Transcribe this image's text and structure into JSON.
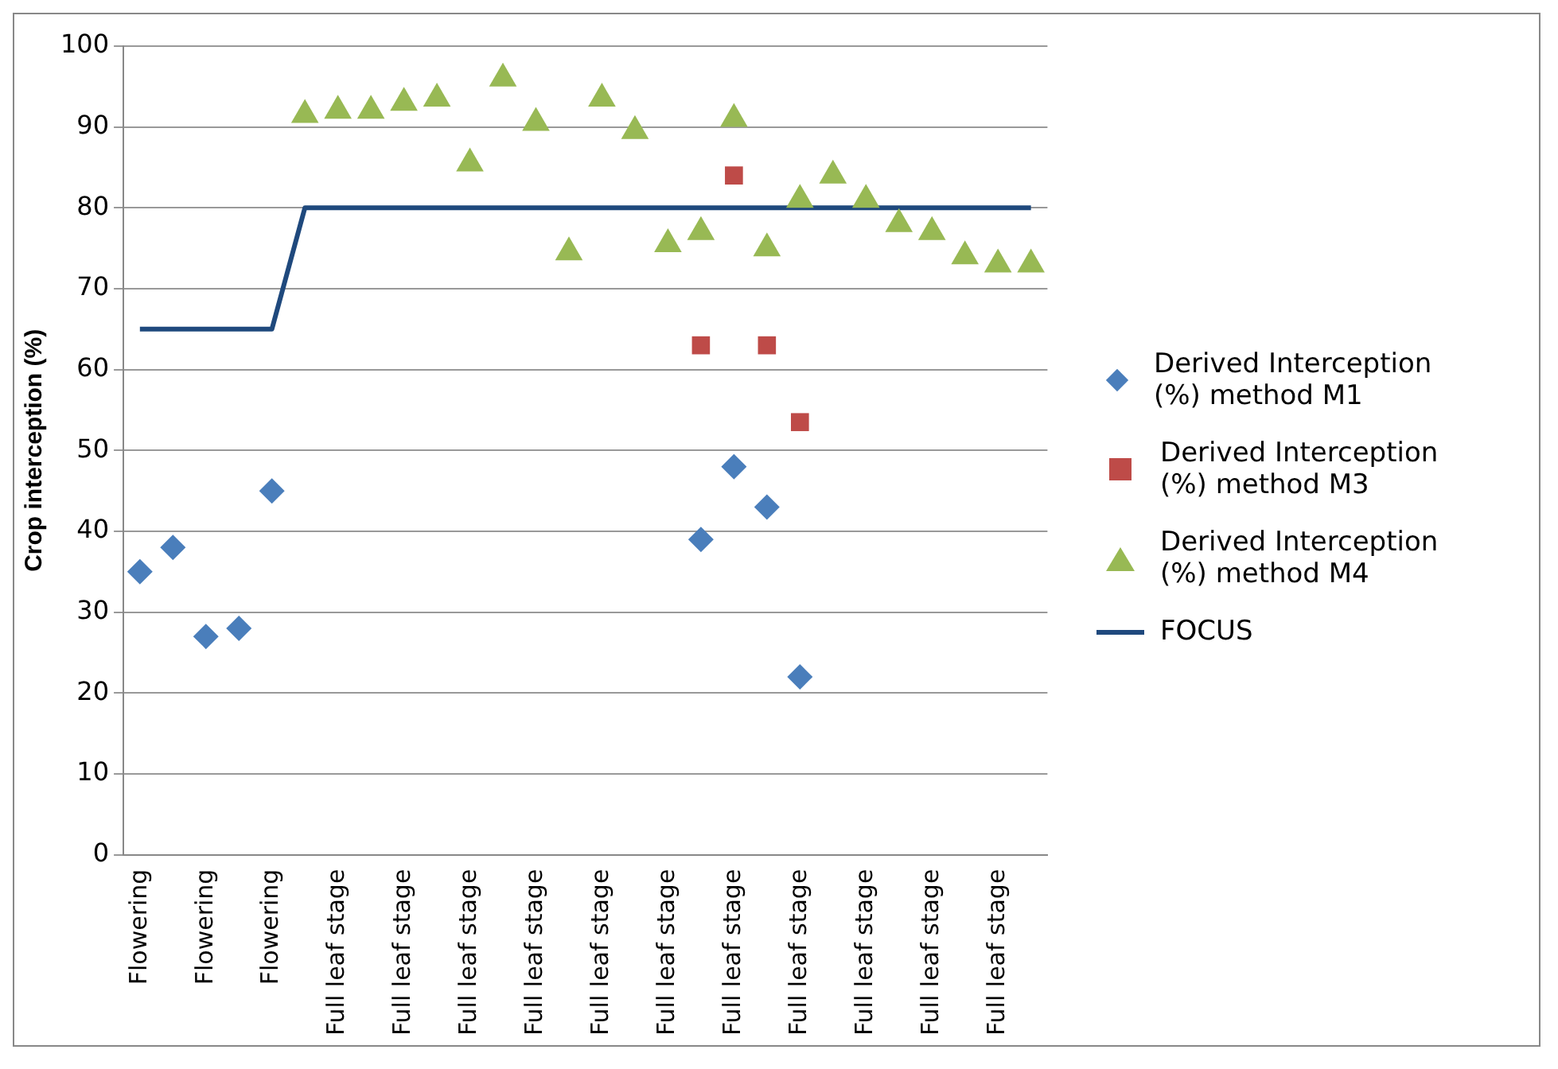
{
  "chart_data": {
    "type": "scatter",
    "ylabel": "Crop interception (%)",
    "categories": [
      "Flowering",
      null,
      "Flowering",
      null,
      "Flowering",
      null,
      "Full leaf stage",
      null,
      "Full leaf stage",
      null,
      "Full leaf stage",
      null,
      "Full leaf stage",
      null,
      "Full leaf stage",
      null,
      "Full leaf stage",
      null,
      "Full leaf stage",
      null,
      "Full leaf stage",
      null,
      "Full leaf stage",
      null,
      "Full leaf stage",
      null,
      "Full leaf stage",
      null
    ],
    "ylim": [
      0,
      100
    ],
    "yticks": [
      0,
      10,
      20,
      30,
      40,
      50,
      60,
      70,
      80,
      90,
      100
    ],
    "grid": "y",
    "legend": "right",
    "series": [
      {
        "name": "Derived Interception (%) method M1",
        "marker": "diamond",
        "color": "#4a7ebb",
        "values": [
          35,
          38,
          27,
          28,
          45,
          null,
          null,
          null,
          null,
          null,
          null,
          null,
          null,
          null,
          null,
          null,
          null,
          39,
          48,
          43,
          22,
          null,
          null,
          null,
          null,
          null,
          null,
          null
        ]
      },
      {
        "name": "Derived Interception (%) method M3",
        "marker": "square",
        "color": "#be4b48",
        "values": [
          null,
          null,
          null,
          null,
          null,
          null,
          null,
          null,
          null,
          null,
          null,
          null,
          null,
          null,
          null,
          null,
          null,
          63,
          84,
          63,
          53.5,
          null,
          null,
          null,
          null,
          null,
          null,
          null
        ]
      },
      {
        "name": "Derived Interception (%) method M4",
        "marker": "triangle",
        "color": "#98b954",
        "values": [
          null,
          null,
          null,
          null,
          null,
          91.5,
          92,
          92,
          93,
          93.5,
          85.5,
          96,
          90.5,
          74.5,
          93.5,
          89.5,
          75.5,
          77,
          91,
          75,
          81,
          84,
          81,
          78,
          77,
          74,
          73,
          73
        ]
      },
      {
        "name": "FOCUS",
        "type": "line",
        "marker": "none",
        "color": "#1f497d",
        "values": [
          65,
          65,
          65,
          65,
          65,
          80,
          80,
          80,
          80,
          80,
          80,
          80,
          80,
          80,
          80,
          80,
          80,
          80,
          80,
          80,
          80,
          80,
          80,
          80,
          80,
          80,
          80,
          80
        ]
      }
    ]
  }
}
